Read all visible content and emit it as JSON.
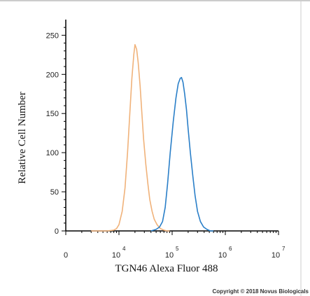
{
  "chart_data": {
    "type": "line",
    "title": "",
    "xlabel": "TGN46 Alexa Fluor 488",
    "ylabel": "Relative Cell Number",
    "x_scale": "log",
    "xlim": [
      1000,
      10000000
    ],
    "ylim": [
      0,
      270
    ],
    "y_ticks": [
      0,
      50,
      100,
      150,
      200,
      250
    ],
    "x_ticks": [
      {
        "value": 1000,
        "base": "0",
        "exp": ""
      },
      {
        "value": 10000,
        "base": "10",
        "exp": "4"
      },
      {
        "value": 100000,
        "base": "10",
        "exp": "5"
      },
      {
        "value": 1000000,
        "base": "10",
        "exp": "6"
      },
      {
        "value": 10000000,
        "base": "10",
        "exp": "7"
      }
    ],
    "grid": false,
    "series": [
      {
        "color": "#f0b27a",
        "points": [
          [
            3000,
            0
          ],
          [
            6000,
            0
          ],
          [
            8000,
            1
          ],
          [
            9000,
            3
          ],
          [
            10000,
            8
          ],
          [
            11500,
            25
          ],
          [
            13000,
            55
          ],
          [
            14500,
            100
          ],
          [
            16000,
            150
          ],
          [
            17500,
            195
          ],
          [
            19000,
            225
          ],
          [
            20000,
            238
          ],
          [
            21500,
            232
          ],
          [
            23000,
            215
          ],
          [
            25000,
            185
          ],
          [
            27000,
            150
          ],
          [
            29000,
            118
          ],
          [
            32000,
            85
          ],
          [
            35000,
            60
          ],
          [
            38000,
            40
          ],
          [
            42000,
            25
          ],
          [
            46000,
            15
          ],
          [
            52000,
            8
          ],
          [
            60000,
            3
          ],
          [
            70000,
            1
          ],
          [
            80000,
            0
          ],
          [
            90000,
            0
          ]
        ]
      },
      {
        "color": "#2a7fc8",
        "points": [
          [
            40000,
            0
          ],
          [
            50000,
            2
          ],
          [
            58000,
            5
          ],
          [
            66000,
            12
          ],
          [
            74000,
            30
          ],
          [
            82000,
            60
          ],
          [
            92000,
            100
          ],
          [
            105000,
            140
          ],
          [
            118000,
            170
          ],
          [
            130000,
            188
          ],
          [
            142000,
            195
          ],
          [
            150000,
            196
          ],
          [
            160000,
            190
          ],
          [
            172000,
            175
          ],
          [
            186000,
            155
          ],
          [
            200000,
            130
          ],
          [
            220000,
            100
          ],
          [
            245000,
            70
          ],
          [
            270000,
            45
          ],
          [
            300000,
            25
          ],
          [
            340000,
            12
          ],
          [
            390000,
            5
          ],
          [
            450000,
            2
          ],
          [
            520000,
            0
          ],
          [
            600000,
            0
          ]
        ]
      }
    ],
    "copyright": "Copyright © 2018 Novus Biologicals"
  }
}
